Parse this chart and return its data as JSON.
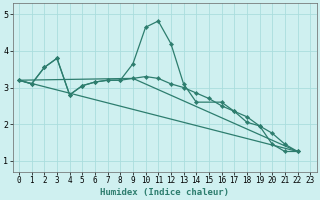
{
  "xlabel": "Humidex (Indice chaleur)",
  "xlim": [
    -0.5,
    23.5
  ],
  "ylim": [
    0.7,
    5.3
  ],
  "yticks": [
    1,
    2,
    3,
    4,
    5
  ],
  "xticks": [
    0,
    1,
    2,
    3,
    4,
    5,
    6,
    7,
    8,
    9,
    10,
    11,
    12,
    13,
    14,
    15,
    16,
    17,
    18,
    19,
    20,
    21,
    22,
    23
  ],
  "bg_color": "#cff0f0",
  "grid_color": "#aadddd",
  "line_color": "#2d7d6e",
  "lines": [
    {
      "x": [
        0,
        1,
        2,
        3,
        4,
        5,
        6,
        7,
        8,
        9,
        10,
        11,
        12,
        13,
        14,
        16,
        17,
        18,
        19,
        20,
        21,
        22
      ],
      "y": [
        3.2,
        3.1,
        3.55,
        3.8,
        2.8,
        3.05,
        3.15,
        3.2,
        3.2,
        3.65,
        4.65,
        4.82,
        4.2,
        3.1,
        2.6,
        2.6,
        2.35,
        2.05,
        1.95,
        1.45,
        1.25,
        1.25
      ],
      "markers": true
    },
    {
      "x": [
        0,
        1,
        2,
        3,
        4,
        5,
        6,
        7,
        8,
        9,
        10,
        11,
        12,
        13,
        14,
        15,
        16,
        17,
        18,
        19,
        20,
        21,
        22
      ],
      "y": [
        3.2,
        3.1,
        3.55,
        3.8,
        2.8,
        3.05,
        3.15,
        3.2,
        3.2,
        3.25,
        3.3,
        3.25,
        3.1,
        3.0,
        2.85,
        2.7,
        2.5,
        2.35,
        2.2,
        1.95,
        1.75,
        1.45,
        1.25
      ],
      "markers": true
    },
    {
      "x": [
        0,
        22
      ],
      "y": [
        3.2,
        1.25
      ],
      "markers": false
    },
    {
      "x": [
        0,
        9,
        22
      ],
      "y": [
        3.2,
        3.25,
        1.25
      ],
      "markers": false
    }
  ]
}
